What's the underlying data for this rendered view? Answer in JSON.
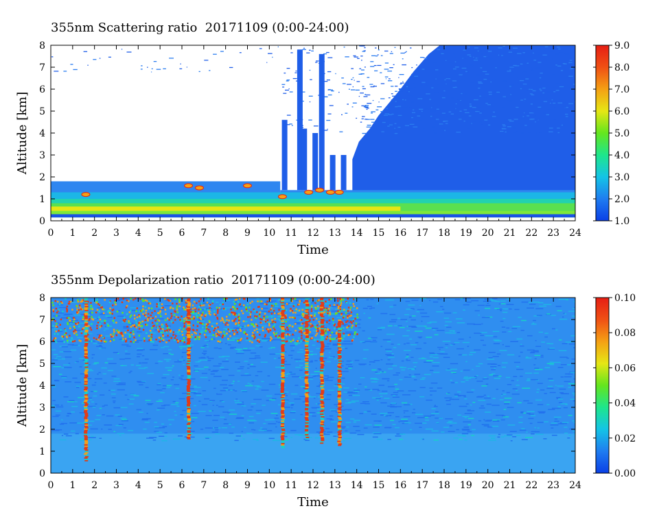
{
  "chart_data": [
    {
      "type": "heatmap",
      "title": "355nm Scattering ratio  20171109 (0:00-24:00)",
      "xlabel": "Time",
      "ylabel": "Altitude [km]",
      "xlim": [
        0,
        24
      ],
      "ylim": [
        0,
        8
      ],
      "x_ticks": [
        "0",
        "1",
        "2",
        "3",
        "4",
        "5",
        "6",
        "7",
        "8",
        "9",
        "10",
        "11",
        "12",
        "13",
        "14",
        "15",
        "16",
        "17",
        "18",
        "19",
        "20",
        "21",
        "22",
        "23",
        "24"
      ],
      "y_ticks": [
        "0",
        "1",
        "2",
        "3",
        "4",
        "5",
        "6",
        "7",
        "8"
      ],
      "colorbar": {
        "range": [
          1.0,
          9.0
        ],
        "tick_labels": [
          "1.0",
          "2.0",
          "3.0",
          "4.0",
          "5.0",
          "6.0",
          "7.0",
          "8.0",
          "9.0"
        ],
        "colors": [
          "#0a3fe6",
          "#1f7df0",
          "#14c4e6",
          "#1ee68c",
          "#64e61e",
          "#e6e614",
          "#f5a014",
          "#f05014",
          "#e61e14"
        ]
      },
      "grid": false
    },
    {
      "type": "heatmap",
      "title": "355nm Depolarization ratio  20171109 (0:00-24:00)",
      "xlabel": "Time",
      "ylabel": "Altitude [km]",
      "xlim": [
        0,
        24
      ],
      "ylim": [
        0,
        8
      ],
      "x_ticks": [
        "0",
        "1",
        "2",
        "3",
        "4",
        "5",
        "6",
        "7",
        "8",
        "9",
        "10",
        "11",
        "12",
        "13",
        "14",
        "15",
        "16",
        "17",
        "18",
        "19",
        "20",
        "21",
        "22",
        "23",
        "24"
      ],
      "y_ticks": [
        "0",
        "1",
        "2",
        "3",
        "4",
        "5",
        "6",
        "7",
        "8"
      ],
      "colorbar": {
        "range": [
          0.0,
          0.1
        ],
        "tick_labels": [
          "0.00",
          "0.02",
          "0.04",
          "0.06",
          "0.08",
          "0.10"
        ],
        "colors": [
          "#0a3fe6",
          "#1f7df0",
          "#14c4e6",
          "#1ee68c",
          "#64e61e",
          "#e6e614",
          "#f5a014",
          "#f05014",
          "#e61e14"
        ]
      },
      "grid": false
    }
  ]
}
